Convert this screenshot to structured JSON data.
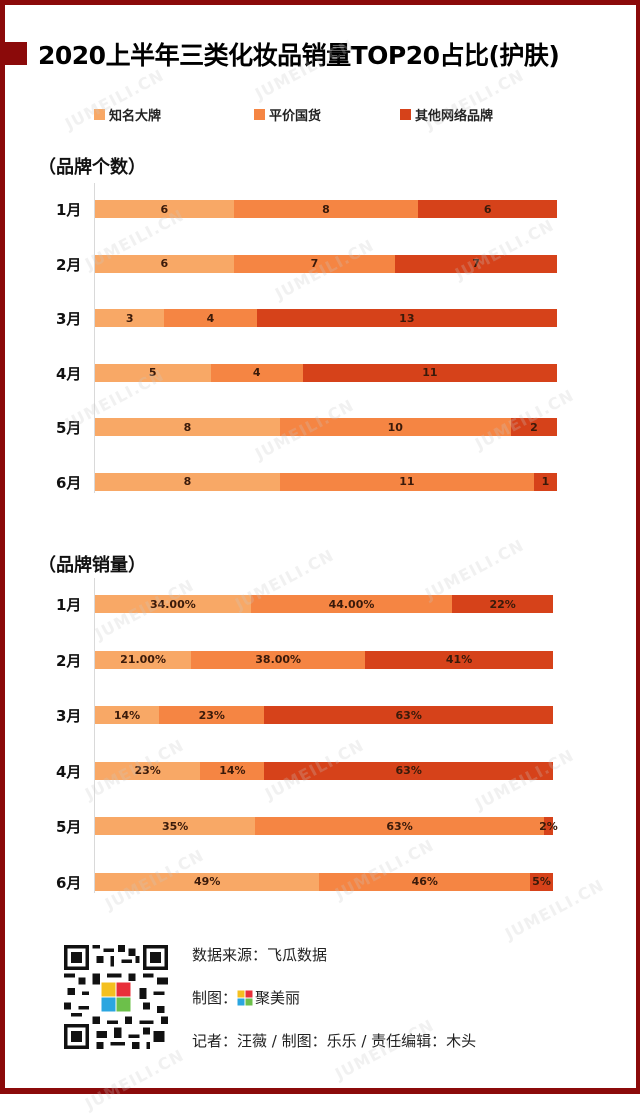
{
  "header": {
    "title": "2020上半年三类化妆品销量TOP20占比(护肤)"
  },
  "legend": [
    {
      "label": "知名大牌",
      "color": "#f8a866"
    },
    {
      "label": "平价国货",
      "color": "#f58543"
    },
    {
      "label": "其他网络品牌",
      "color": "#d6421a"
    }
  ],
  "colors": {
    "frame": "#8b0a0a",
    "brand": "#f8a866",
    "domestic": "#f58543",
    "other": "#d6421a"
  },
  "sections": {
    "count_title": "（品牌个数）",
    "sales_title": "（品牌销量）"
  },
  "chart_data": [
    {
      "type": "bar",
      "orientation": "horizontal",
      "stacked": true,
      "title": "（品牌个数）",
      "categories": [
        "1月",
        "2月",
        "3月",
        "4月",
        "5月",
        "6月"
      ],
      "series": [
        {
          "name": "知名大牌",
          "values": [
            6,
            6,
            3,
            5,
            8,
            8
          ],
          "labels": [
            "6",
            "6",
            "3",
            "5",
            "8",
            "8"
          ]
        },
        {
          "name": "平价国货",
          "values": [
            8,
            7,
            4,
            4,
            10,
            11
          ],
          "labels": [
            "8",
            "7",
            "4",
            "4",
            "10",
            "11"
          ]
        },
        {
          "name": "其他网络品牌",
          "values": [
            6,
            7,
            13,
            11,
            2,
            1
          ],
          "labels": [
            "6",
            "7",
            "13",
            "11",
            "2",
            "1"
          ]
        }
      ],
      "xlabel": "",
      "ylabel": "",
      "xlim": [
        0,
        20
      ],
      "grid": false,
      "legend_position": "top"
    },
    {
      "type": "bar",
      "orientation": "horizontal",
      "stacked": true,
      "title": "（品牌销量）",
      "categories": [
        "1月",
        "2月",
        "3月",
        "4月",
        "5月",
        "6月"
      ],
      "series": [
        {
          "name": "知名大牌",
          "values": [
            34,
            21,
            14,
            23,
            35,
            49
          ],
          "labels": [
            "34.00%",
            "21.00%",
            "14%",
            "23%",
            "35%",
            "49%"
          ]
        },
        {
          "name": "平价国货",
          "values": [
            44,
            38,
            23,
            14,
            63,
            46
          ],
          "labels": [
            "44.00%",
            "38.00%",
            "23%",
            "14%",
            "63%",
            "46%"
          ]
        },
        {
          "name": "其他网络品牌",
          "values": [
            22,
            41,
            63,
            63,
            2,
            5
          ],
          "labels": [
            "22%",
            "41%",
            "63%",
            "63%",
            "2%",
            "5%"
          ]
        }
      ],
      "xlabel": "",
      "ylabel": "",
      "xlim": [
        0,
        100
      ],
      "grid": false,
      "legend_position": "top"
    }
  ],
  "footer": {
    "source": "数据来源：飞瓜数据",
    "made_by_label": "制图：",
    "brand_name": "聚美丽",
    "credits": "记者：汪薇 /  制图：乐乐 /  责任编辑：木头"
  },
  "watermark": "JUMEILI.CN"
}
